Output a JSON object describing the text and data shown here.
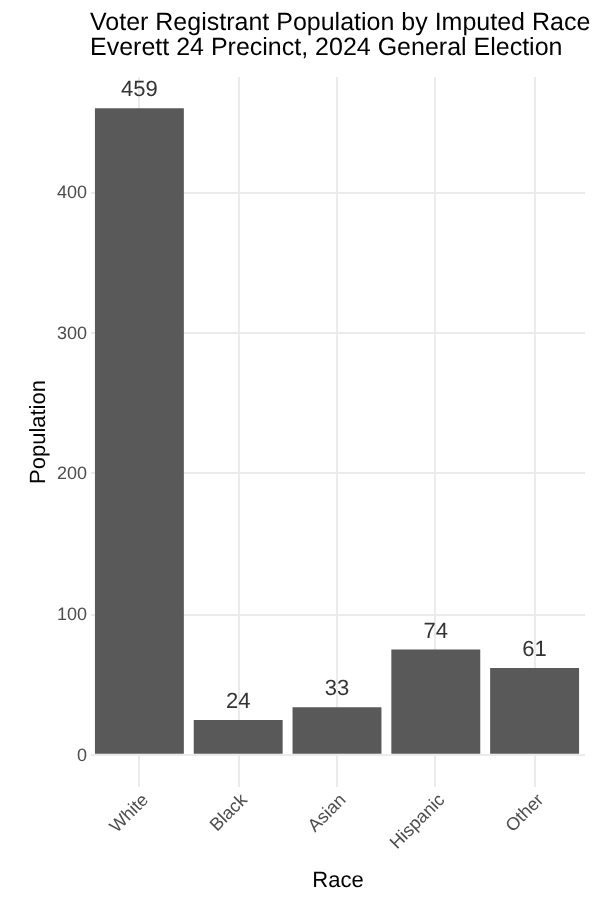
{
  "chart_data": {
    "type": "bar",
    "title": "Voter Registrant Population by Imputed Race",
    "subtitle": "Everett  24 Precinct,  2024 General Election",
    "xlabel": "Race",
    "ylabel": "Population",
    "categories": [
      "White",
      "Black",
      "Asian",
      "Hispanic",
      "Other"
    ],
    "values": [
      459,
      24,
      33,
      74,
      61
    ],
    "color": "#595959",
    "ylim": [
      -23,
      482
    ],
    "yticks": [
      0,
      100,
      200,
      300,
      400
    ],
    "grid": true,
    "data_labels": true
  }
}
